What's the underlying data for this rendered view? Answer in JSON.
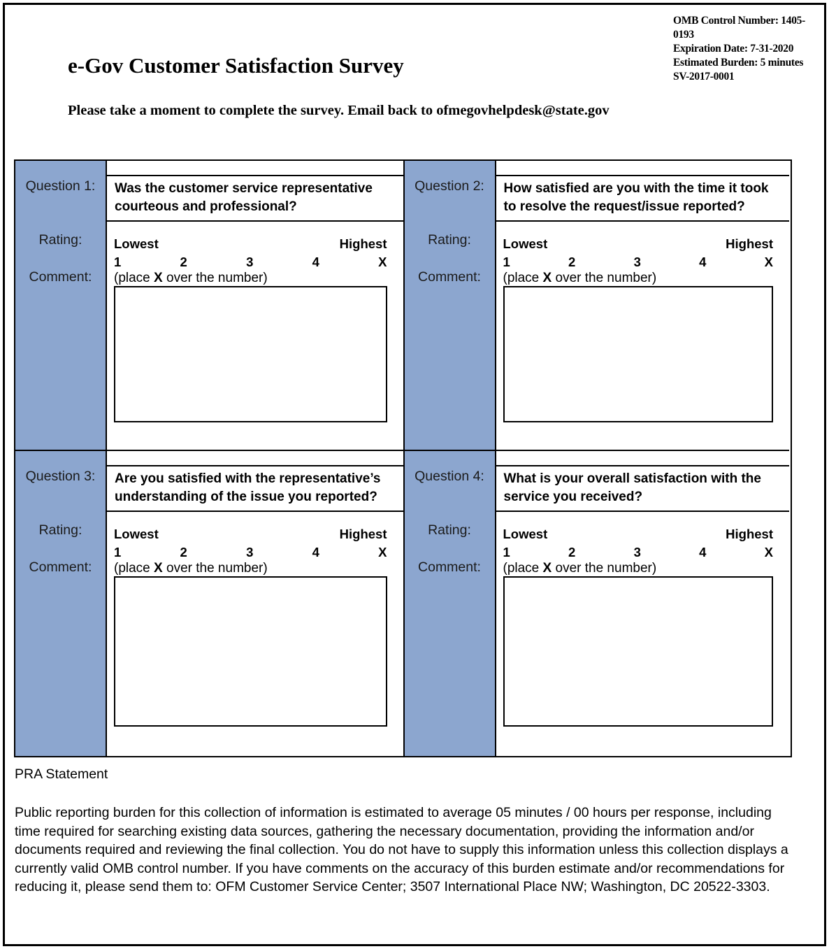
{
  "header": {
    "omb_lines": [
      "OMB Control Number: 1405-0193",
      "Expiration Date: 7-31-2020",
      "Estimated Burden: 5 minutes",
      "SV-2017-0001"
    ],
    "title": "e-Gov Customer Satisfaction Survey",
    "subtitle": "Please take a moment to complete the survey. Email back to ofmegovhelpdesk@state.gov"
  },
  "labels": {
    "rating": "Rating:",
    "comment": "Comment:"
  },
  "rating_scale": {
    "lowest": "Lowest",
    "highest": "Highest",
    "values": [
      "1",
      "2",
      "3",
      "4",
      "X"
    ],
    "note_prefix": "(place ",
    "note_bold": "X",
    "note_suffix": " over the number)"
  },
  "questions": [
    {
      "label": "Question 1:",
      "text": "Was the customer service representative courteous and professional?",
      "rating_value": "",
      "comment_value": ""
    },
    {
      "label": "Question 2:",
      "text": "How satisfied are you with the time it took to resolve the request/issue reported?",
      "rating_value": "",
      "comment_value": ""
    },
    {
      "label": "Question 3:",
      "text": "Are you satisfied with the representative’s understanding of the issue you reported?",
      "rating_value": "",
      "comment_value": ""
    },
    {
      "label": "Question 4:",
      "text": "What is your overall satisfaction with the service you received?",
      "rating_value": "",
      "comment_value": ""
    }
  ],
  "footer": {
    "heading": "PRA Statement",
    "body": "Public reporting burden for this collection of information is estimated to average 05 minutes / 00 hours per response, including time required for searching existing data sources, gathering the necessary documentation, providing the information and/or documents required and reviewing the final collection. You do not have to supply this information unless this collection displays a currently valid OMB control number. If you have comments on the accuracy of this burden estimate and/or recommendations for reducing it, please send them to: OFM Customer Service Center; 3507 International Place NW; Washington, DC 20522-3303."
  },
  "colors": {
    "label_column_bg": "#8CA6CF",
    "border": "#000000"
  }
}
